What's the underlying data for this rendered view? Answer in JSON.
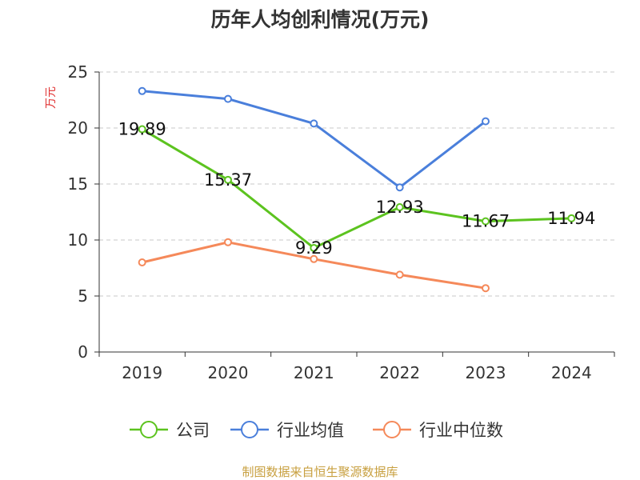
{
  "chart_data": {
    "type": "line",
    "title": "历年人均创利情况(万元)",
    "ylabel": "万元",
    "xlabel": "",
    "categories": [
      "2019",
      "2020",
      "2021",
      "2022",
      "2023",
      "2024"
    ],
    "ylim": [
      0,
      25
    ],
    "yticks": [
      0,
      5,
      10,
      15,
      20,
      25
    ],
    "grid": true,
    "legend_position": "bottom",
    "series": [
      {
        "name": "公司",
        "color": "#5cc31f",
        "values": [
          19.89,
          15.37,
          9.29,
          12.93,
          11.67,
          11.94
        ],
        "labels": [
          "19.89",
          "15.37",
          "9.29",
          "12.93",
          "11.67",
          "11.94"
        ]
      },
      {
        "name": "行业均值",
        "color": "#4a7fdb",
        "values": [
          23.3,
          22.6,
          20.4,
          14.7,
          20.6,
          null
        ]
      },
      {
        "name": "行业中位数",
        "color": "#f5895a",
        "values": [
          8.0,
          9.8,
          8.3,
          6.9,
          5.7,
          null
        ]
      }
    ],
    "source": "制图数据来自恒生聚源数据库"
  }
}
